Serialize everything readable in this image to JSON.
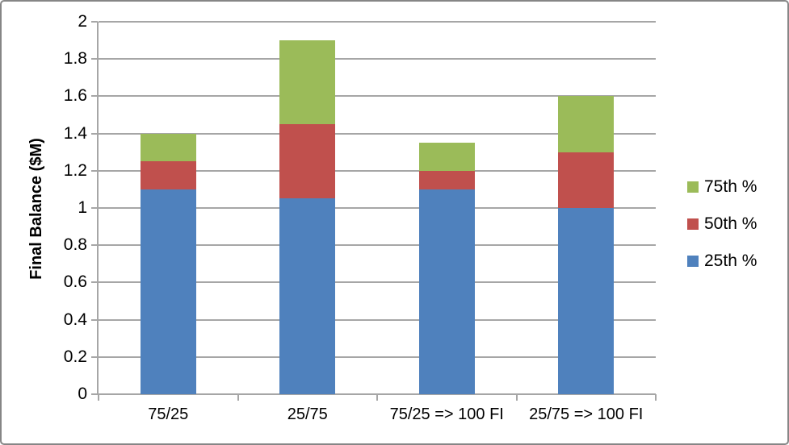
{
  "chart_data": {
    "type": "bar",
    "stacked": true,
    "title": "",
    "xlabel": "",
    "ylabel": "Final Balance ($M)",
    "ylim": [
      0,
      2
    ],
    "ytick_step": 0.2,
    "ytick_labels": [
      "0",
      "0.2",
      "0.4",
      "0.6",
      "0.8",
      "1",
      "1.2",
      "1.4",
      "1.6",
      "1.8",
      "2"
    ],
    "grid": true,
    "categories": [
      "75/25",
      "25/75",
      "75/25 => 100 FI",
      "25/75 => 100 FI"
    ],
    "series": [
      {
        "name": "25th %",
        "color": "#4F81BD",
        "values": [
          1.1,
          1.05,
          1.1,
          1.0
        ]
      },
      {
        "name": "50th %",
        "color": "#C0504D",
        "values": [
          0.15,
          0.4,
          0.1,
          0.3
        ]
      },
      {
        "name": "75th %",
        "color": "#9BBB59",
        "values": [
          0.15,
          0.45,
          0.15,
          0.3
        ]
      }
    ],
    "stack_cumulative_tops": {
      "25th %": [
        1.1,
        1.05,
        1.1,
        1.0
      ],
      "50th %": [
        1.25,
        1.45,
        1.2,
        1.3
      ],
      "75th %": [
        1.4,
        1.9,
        1.35,
        1.6
      ]
    },
    "legend_position": "right",
    "legend_order": [
      "75th %",
      "50th %",
      "25th %"
    ],
    "colors": {
      "gridline": "#A6A6A6",
      "axis": "#A6A6A6",
      "frame_border": "#868686",
      "text": "#000000",
      "background": "#FFFFFF"
    }
  }
}
